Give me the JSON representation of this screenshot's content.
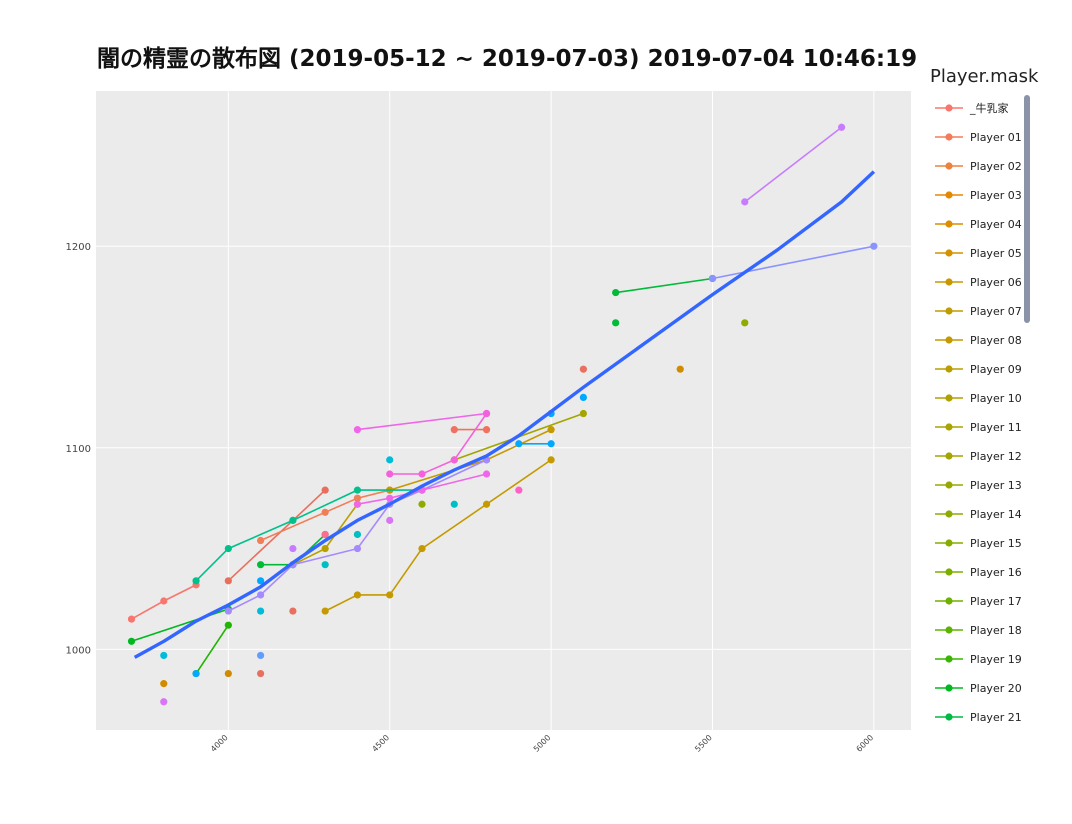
{
  "chart_data": {
    "type": "scatter",
    "title": "闇の精霊の散布図 (2019-05-12 ~ 2019-07-03) 2019-07-04 10:46:19",
    "xlabel": "",
    "ylabel": "",
    "xlim": [
      3590,
      6115
    ],
    "ylim": [
      960,
      1277
    ],
    "x_ticks": [
      4000,
      4500,
      5000,
      5500,
      6000
    ],
    "y_ticks": [
      1000,
      1100,
      1200
    ],
    "grid": true,
    "legend_title": "Player.mask",
    "legend_position": "right",
    "legend_entries": [
      {
        "name": "_牛乳家",
        "color": "#F8766D"
      },
      {
        "name": "Player 01",
        "color": "#F37B59"
      },
      {
        "name": "Player 02",
        "color": "#ED813E"
      },
      {
        "name": "Player 03",
        "color": "#E58700"
      },
      {
        "name": "Player 04",
        "color": "#DC8E00"
      },
      {
        "name": "Player 05",
        "color": "#D39200"
      },
      {
        "name": "Player 06",
        "color": "#C99800"
      },
      {
        "name": "Player 07",
        "color": "#BF9C00"
      },
      {
        "name": "Player 08",
        "color": "#C49A00"
      },
      {
        "name": "Player 09",
        "color": "#BA9E00"
      },
      {
        "name": "Player 10",
        "color": "#B0A100"
      },
      {
        "name": "Player 11",
        "color": "#A9A400"
      },
      {
        "name": "Player 12",
        "color": "#A3A500"
      },
      {
        "name": "Player 13",
        "color": "#99A800"
      },
      {
        "name": "Player 14",
        "color": "#8FAA00"
      },
      {
        "name": "Player 15",
        "color": "#86AC00"
      },
      {
        "name": "Player 16",
        "color": "#7CAE00"
      },
      {
        "name": "Player 17",
        "color": "#6FB000"
      },
      {
        "name": "Player 18",
        "color": "#5EB300"
      },
      {
        "name": "Player 19",
        "color": "#39B600"
      },
      {
        "name": "Player 20",
        "color": "#00B81F"
      },
      {
        "name": "Player 21",
        "color": "#00BA42"
      }
    ],
    "series": [
      {
        "color": "#F8766D",
        "line": true,
        "points": [
          [
            3700,
            1015
          ],
          [
            3800,
            1024
          ],
          [
            3900,
            1032
          ]
        ]
      },
      {
        "color": "#E76F5C",
        "line": true,
        "points": [
          [
            4000,
            1034
          ],
          [
            4200,
            1064
          ],
          [
            4300,
            1079
          ]
        ]
      },
      {
        "color": "#F07E56",
        "line": true,
        "points": [
          [
            4100,
            1054
          ],
          [
            4300,
            1068
          ],
          [
            4400,
            1075
          ],
          [
            4500,
            1079
          ]
        ]
      },
      {
        "color": "#E9705E",
        "line": false,
        "points": [
          [
            4200,
            1019
          ],
          [
            4100,
            988
          ],
          [
            5100,
            1139
          ]
        ]
      },
      {
        "color": "#F2705E",
        "line": true,
        "points": [
          [
            4700,
            1109
          ],
          [
            4800,
            1109
          ]
        ]
      },
      {
        "color": "#D08B00",
        "line": false,
        "points": [
          [
            3800,
            983
          ],
          [
            4000,
            988
          ],
          [
            5400,
            1139
          ]
        ]
      },
      {
        "color": "#C49A00",
        "line": true,
        "points": [
          [
            4300,
            1019
          ],
          [
            4400,
            1027
          ],
          [
            4500,
            1027
          ],
          [
            4600,
            1050
          ],
          [
            4800,
            1072
          ],
          [
            5000,
            1094
          ]
        ]
      },
      {
        "color": "#C49A00",
        "line": true,
        "points": [
          [
            4500,
            1079
          ],
          [
            4800,
            1094
          ],
          [
            5000,
            1109
          ]
        ]
      },
      {
        "color": "#B8A000",
        "line": true,
        "points": [
          [
            4200,
            1042
          ],
          [
            4300,
            1050
          ],
          [
            4400,
            1072
          ]
        ]
      },
      {
        "color": "#A3A500",
        "line": true,
        "points": [
          [
            4700,
            1094
          ],
          [
            5100,
            1117
          ]
        ]
      },
      {
        "color": "#8FAA00",
        "line": false,
        "points": [
          [
            4600,
            1072
          ],
          [
            5600,
            1162
          ]
        ]
      },
      {
        "color": "#00B81F",
        "line": true,
        "points": [
          [
            3700,
            1004
          ],
          [
            4000,
            1020
          ]
        ]
      },
      {
        "color": "#1FB500",
        "line": true,
        "points": [
          [
            3900,
            988
          ],
          [
            4000,
            1012
          ]
        ]
      },
      {
        "color": "#00BA38",
        "line": true,
        "points": [
          [
            5200,
            1177
          ],
          [
            5500,
            1184
          ]
        ]
      },
      {
        "color": "#00BA38",
        "line": false,
        "points": [
          [
            5200,
            1162
          ]
        ]
      },
      {
        "color": "#00BA38",
        "line": true,
        "points": [
          [
            4100,
            1042
          ],
          [
            4200,
            1042
          ],
          [
            4300,
            1057
          ]
        ]
      },
      {
        "color": "#00C08B",
        "line": true,
        "points": [
          [
            3900,
            1034
          ],
          [
            4000,
            1050
          ],
          [
            4200,
            1064
          ],
          [
            4400,
            1079
          ],
          [
            4600,
            1079
          ]
        ]
      },
      {
        "color": "#00BFC4",
        "line": false,
        "points": [
          [
            4300,
            1042
          ],
          [
            4400,
            1057
          ],
          [
            4700,
            1072
          ]
        ]
      },
      {
        "color": "#00BCD8",
        "line": false,
        "points": [
          [
            3800,
            997
          ],
          [
            4100,
            1019
          ],
          [
            4500,
            1094
          ]
        ]
      },
      {
        "color": "#00A9FF",
        "line": true,
        "points": [
          [
            4900,
            1102
          ],
          [
            5000,
            1102
          ]
        ]
      },
      {
        "color": "#00A9FF",
        "line": false,
        "points": [
          [
            3900,
            988
          ],
          [
            4100,
            1034
          ],
          [
            5000,
            1117
          ],
          [
            5100,
            1125
          ]
        ]
      },
      {
        "color": "#619CFF",
        "line": false,
        "points": [
          [
            4100,
            997
          ]
        ]
      },
      {
        "color": "#8B93FF",
        "line": true,
        "points": [
          [
            5500,
            1184
          ],
          [
            6000,
            1200
          ]
        ]
      },
      {
        "color": "#A58AFF",
        "line": true,
        "points": [
          [
            4000,
            1019
          ],
          [
            4100,
            1027
          ],
          [
            4200,
            1042
          ],
          [
            4400,
            1050
          ],
          [
            4500,
            1072
          ],
          [
            4600,
            1079
          ],
          [
            4800,
            1094
          ]
        ]
      },
      {
        "color": "#C77CFF",
        "line": true,
        "points": [
          [
            5600,
            1222
          ],
          [
            5900,
            1259
          ]
        ]
      },
      {
        "color": "#C77CFF",
        "line": false,
        "points": [
          [
            4200,
            1050
          ]
        ]
      },
      {
        "color": "#D974F5",
        "line": false,
        "points": [
          [
            3800,
            974
          ],
          [
            4500,
            1064
          ]
        ]
      },
      {
        "color": "#F066EA",
        "line": true,
        "points": [
          [
            4400,
            1109
          ],
          [
            4800,
            1117
          ]
        ]
      },
      {
        "color": "#F066EA",
        "line": true,
        "points": [
          [
            4400,
            1072
          ],
          [
            4500,
            1075
          ],
          [
            4600,
            1079
          ],
          [
            4800,
            1087
          ]
        ]
      },
      {
        "color": "#F561DD",
        "line": true,
        "points": [
          [
            4500,
            1087
          ],
          [
            4600,
            1087
          ],
          [
            4700,
            1094
          ],
          [
            4800,
            1117
          ]
        ]
      },
      {
        "color": "#FF61C3",
        "line": false,
        "points": [
          [
            4900,
            1079
          ]
        ]
      },
      {
        "color": "#FF6C91",
        "line": false,
        "points": [
          [
            4300,
            1057
          ]
        ]
      }
    ],
    "trend": {
      "color": "#3366FF",
      "points": [
        [
          3710,
          996
        ],
        [
          3800,
          1004
        ],
        [
          3900,
          1014
        ],
        [
          4000,
          1022
        ],
        [
          4100,
          1031
        ],
        [
          4200,
          1043
        ],
        [
          4300,
          1054
        ],
        [
          4400,
          1064
        ],
        [
          4500,
          1072
        ],
        [
          4600,
          1081
        ],
        [
          4700,
          1089
        ],
        [
          4800,
          1096
        ],
        [
          4900,
          1106
        ],
        [
          5000,
          1118
        ],
        [
          5100,
          1130
        ],
        [
          5300,
          1153
        ],
        [
          5500,
          1176
        ],
        [
          5700,
          1198
        ],
        [
          5900,
          1222
        ],
        [
          6000,
          1237
        ]
      ]
    }
  }
}
